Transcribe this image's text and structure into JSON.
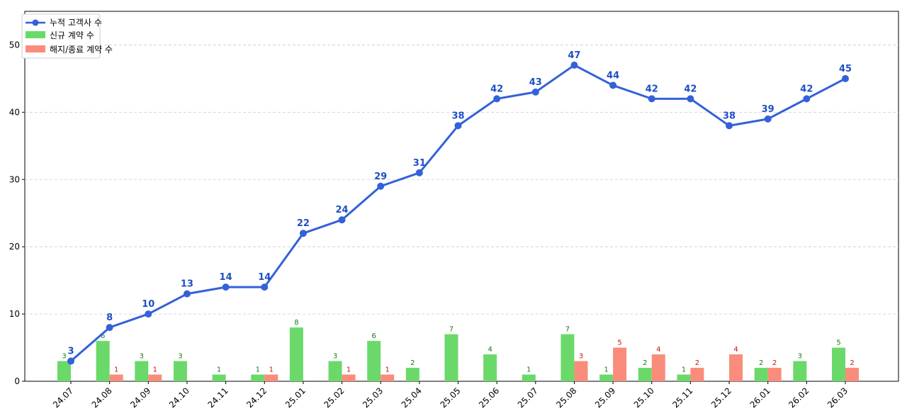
{
  "colors": {
    "line": "#3461d9",
    "line_label": "#1f4fc4",
    "bar_new": "#6ad96a",
    "bar_new_label": "#1a7a1a",
    "bar_exit": "#fa8c7c",
    "bar_exit_label": "#d01010"
  },
  "legend": {
    "position": "top-left",
    "items": [
      {
        "label": "누적 고객사 수"
      },
      {
        "label": "신규 계약 수"
      },
      {
        "label": "해지/종료 계약 수"
      }
    ]
  },
  "chart_data": {
    "type": "bar",
    "grid": "y-dashed",
    "ylim": [
      0,
      55
    ],
    "yticks": [
      0,
      10,
      20,
      30,
      40,
      50
    ],
    "categories": [
      "24.07",
      "24.08",
      "24.09",
      "24.10",
      "24.11",
      "24.12",
      "25.01",
      "25.02",
      "25.03",
      "25.04",
      "25.05",
      "25.06",
      "25.07",
      "25.08",
      "25.09",
      "25.10",
      "25.11",
      "25.12",
      "26.01",
      "26.02",
      "26.03"
    ],
    "series": [
      {
        "name": "누적 고객사 수",
        "type": "line",
        "values": [
          3,
          8,
          10,
          13,
          14,
          14,
          22,
          24,
          29,
          31,
          38,
          42,
          43,
          47,
          44,
          42,
          42,
          38,
          39,
          42,
          45
        ]
      },
      {
        "name": "신규 계약 수",
        "type": "bar",
        "values": [
          3,
          6,
          3,
          3,
          1,
          1,
          8,
          3,
          6,
          2,
          7,
          4,
          1,
          7,
          1,
          2,
          1,
          0,
          2,
          3,
          5
        ]
      },
      {
        "name": "해지/종료 계약 수",
        "type": "bar",
        "values": [
          0,
          1,
          1,
          0,
          0,
          1,
          0,
          1,
          1,
          0,
          0,
          0,
          0,
          3,
          5,
          4,
          2,
          4,
          2,
          0,
          2
        ]
      }
    ]
  }
}
